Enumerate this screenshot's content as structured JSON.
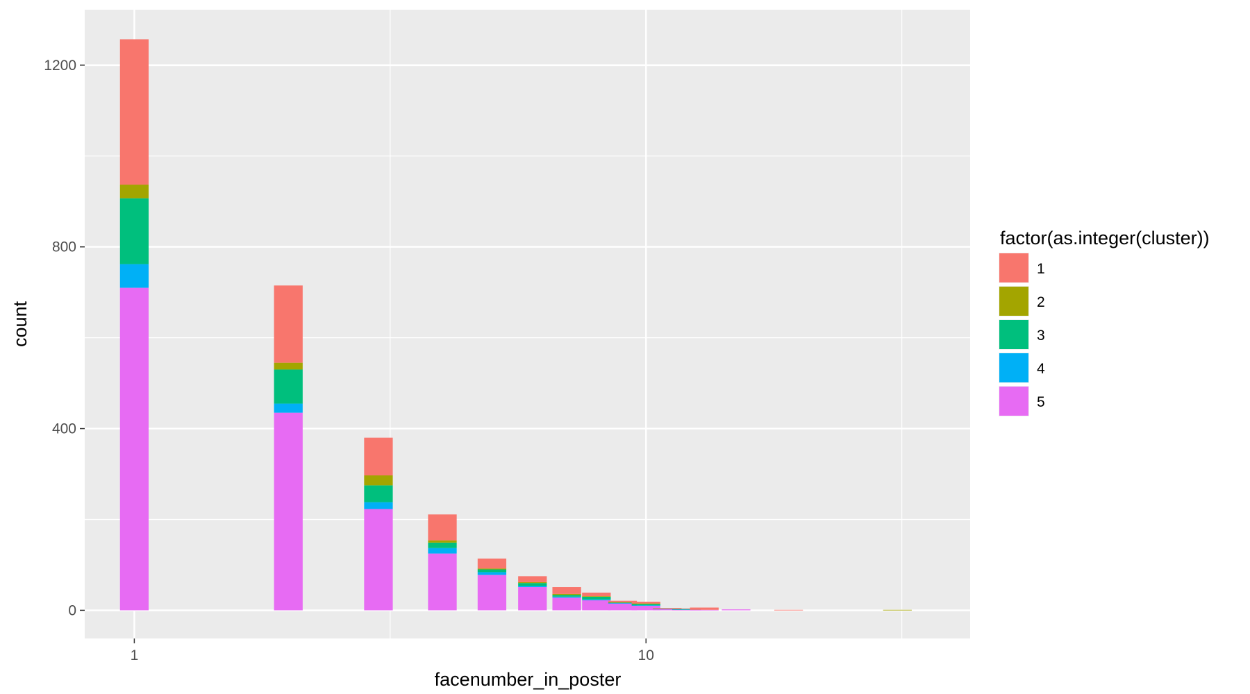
{
  "chart_data": {
    "type": "bar",
    "stacked": true,
    "xlabel": "facenumber_in_poster",
    "ylabel": "count",
    "x_scale": "log10",
    "xlim": [
      0.8,
      43
    ],
    "ylim": [
      -62,
      1322
    ],
    "x_ticks": [
      1,
      10
    ],
    "y_ticks": [
      0,
      400,
      800,
      1200
    ],
    "legend": {
      "title": "factor(as.integer(cluster))",
      "position": "right"
    },
    "series": [
      {
        "name": "1",
        "color": "#F8766D"
      },
      {
        "name": "2",
        "color": "#A3A500"
      },
      {
        "name": "3",
        "color": "#00BF7D"
      },
      {
        "name": "4",
        "color": "#00B0F6"
      },
      {
        "name": "5",
        "color": "#E76BF3"
      }
    ],
    "bars": [
      {
        "x": 1,
        "values": [
          320,
          30,
          145,
          52,
          710
        ]
      },
      {
        "x": 2,
        "values": [
          170,
          15,
          75,
          20,
          435
        ]
      },
      {
        "x": 3,
        "values": [
          83,
          22,
          37,
          15,
          223
        ]
      },
      {
        "x": 4,
        "values": [
          57,
          5,
          12,
          12,
          125
        ]
      },
      {
        "x": 5,
        "values": [
          22,
          2,
          6,
          6,
          78
        ]
      },
      {
        "x": 6,
        "values": [
          13,
          2,
          6,
          3,
          51
        ]
      },
      {
        "x": 7,
        "values": [
          15,
          2,
          4,
          2,
          28
        ]
      },
      {
        "x": 8,
        "values": [
          8,
          1,
          6,
          2,
          22
        ]
      },
      {
        "x": 9,
        "values": [
          3,
          1,
          1,
          1,
          15
        ]
      },
      {
        "x": 10,
        "values": [
          4,
          1,
          3,
          1,
          10
        ]
      },
      {
        "x": 11,
        "values": [
          1,
          0,
          1,
          0,
          3
        ]
      },
      {
        "x": 12,
        "values": [
          1,
          0,
          1,
          1,
          1
        ]
      },
      {
        "x": 13,
        "values": [
          5,
          0,
          0,
          0,
          1
        ]
      },
      {
        "x": 15,
        "values": [
          0,
          0,
          0,
          0,
          2
        ]
      },
      {
        "x": 19,
        "values": [
          1,
          0,
          0,
          0,
          0
        ]
      },
      {
        "x": 31,
        "values": [
          0,
          1,
          0,
          0,
          0
        ]
      }
    ]
  }
}
